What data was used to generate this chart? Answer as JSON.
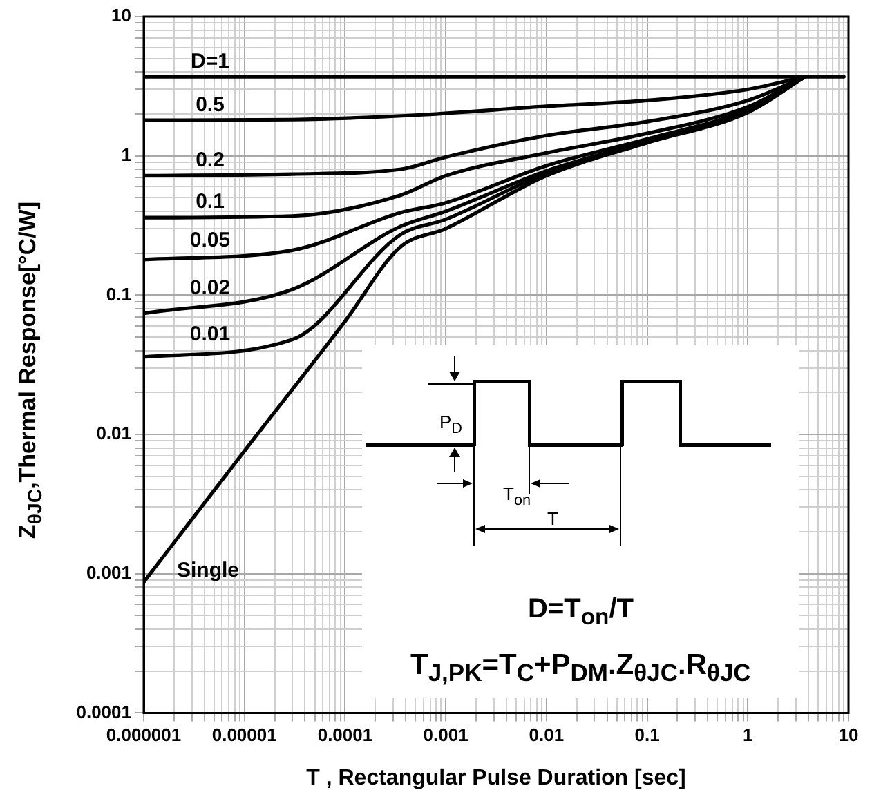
{
  "chart_data": {
    "type": "line",
    "xlabel": "T , Rectangular Pulse Duration [sec]",
    "ylabel": "Z$_{θJC}$,Thermal Response[°C/W]",
    "log": "xy",
    "grid": true,
    "marker": "none",
    "line_style": "solid",
    "xlim": [
      1e-06,
      10
    ],
    "xticks": [
      {
        "value": 1e-06,
        "label": "0.000001"
      },
      {
        "value": 1e-05,
        "label": "0.00001"
      },
      0.0001,
      0.001,
      0.01,
      0.1,
      1,
      10
    ],
    "ylim": [
      0.0001,
      10
    ],
    "yticks": [
      0.0001,
      0.001,
      0.01,
      0.1,
      1,
      10
    ],
    "series": [
      {
        "name": "D=1",
        "color": "#000000",
        "x": [
          1e-06,
          9
        ],
        "values": [
          3.7,
          3.7
        ]
      },
      {
        "name": "0.5",
        "color": "#000000",
        "x": [
          1e-06,
          3e-05,
          0.0005,
          0.01,
          0.1,
          1,
          3.7
        ],
        "values": [
          1.8,
          1.82,
          1.96,
          2.27,
          2.5,
          3.0,
          3.7
        ]
      },
      {
        "name": "0.2",
        "color": "#000000",
        "x": [
          1e-06,
          3e-05,
          0.00035,
          0.001,
          0.01,
          0.1,
          1,
          3.7
        ],
        "values": [
          0.72,
          0.74,
          0.8,
          0.98,
          1.4,
          1.76,
          2.5,
          3.7
        ]
      },
      {
        "name": "0.1",
        "color": "#000000",
        "x": [
          1e-06,
          3e-05,
          0.00035,
          0.001,
          0.01,
          0.1,
          1,
          3.7
        ],
        "values": [
          0.36,
          0.37,
          0.52,
          0.72,
          1.05,
          1.45,
          2.25,
          3.7
        ]
      },
      {
        "name": "0.05",
        "color": "#000000",
        "x": [
          1e-06,
          3e-05,
          0.00035,
          0.001,
          0.01,
          0.1,
          1,
          3.7
        ],
        "values": [
          0.18,
          0.21,
          0.39,
          0.46,
          0.85,
          1.32,
          2.15,
          3.7
        ]
      },
      {
        "name": "0.02",
        "color": "#000000",
        "x": [
          1e-06,
          3e-05,
          0.00035,
          0.001,
          0.01,
          0.1,
          1,
          3.7
        ],
        "values": [
          0.074,
          0.11,
          0.31,
          0.4,
          0.78,
          1.27,
          2.1,
          3.7
        ]
      },
      {
        "name": "0.01",
        "color": "#000000",
        "x": [
          1e-06,
          3e-05,
          0.00035,
          0.001,
          0.01,
          0.1,
          1,
          3.7
        ],
        "values": [
          0.036,
          0.048,
          0.27,
          0.35,
          0.75,
          1.25,
          2.08,
          3.7
        ]
      },
      {
        "name": "Single",
        "color": "#000000",
        "x": [
          1e-06,
          1e-05,
          0.0001,
          0.00035,
          0.001,
          0.01,
          0.1,
          1,
          3.7
        ],
        "values": [
          0.00087,
          0.0076,
          0.065,
          0.22,
          0.3,
          0.72,
          1.24,
          2.05,
          3.7
        ]
      }
    ],
    "annotations": [
      "P$_{D}$",
      "T$_{on}$",
      "T",
      "D=T$_{on}$/T",
      "T$_{J,PK}$=T$_{C}$+P$_{DM}$.Z$_{θJC}$.R$_{θJC}$"
    ]
  }
}
